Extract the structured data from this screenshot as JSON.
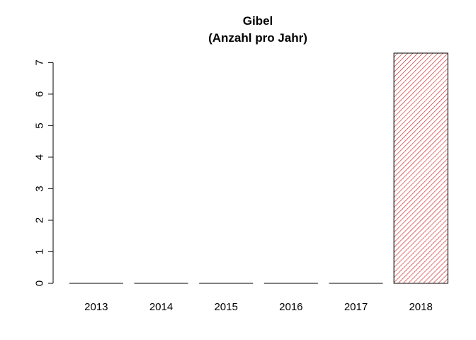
{
  "chart_data": {
    "type": "bar",
    "title": "Gibel",
    "subtitle": "(Anzahl pro Jahr)",
    "xlabel": "",
    "ylabel": "",
    "categories": [
      "2013",
      "2014",
      "2015",
      "2016",
      "2017",
      "2018"
    ],
    "values": [
      0,
      0,
      0,
      0,
      0,
      7.3
    ],
    "yticks": [
      0,
      1,
      2,
      3,
      4,
      5,
      6,
      7
    ],
    "ylim": [
      0,
      7.3
    ],
    "grid": false,
    "legend": "none",
    "bar_fill": "hatched",
    "bar_color": "#cc0000",
    "outline_color": "#000000"
  }
}
